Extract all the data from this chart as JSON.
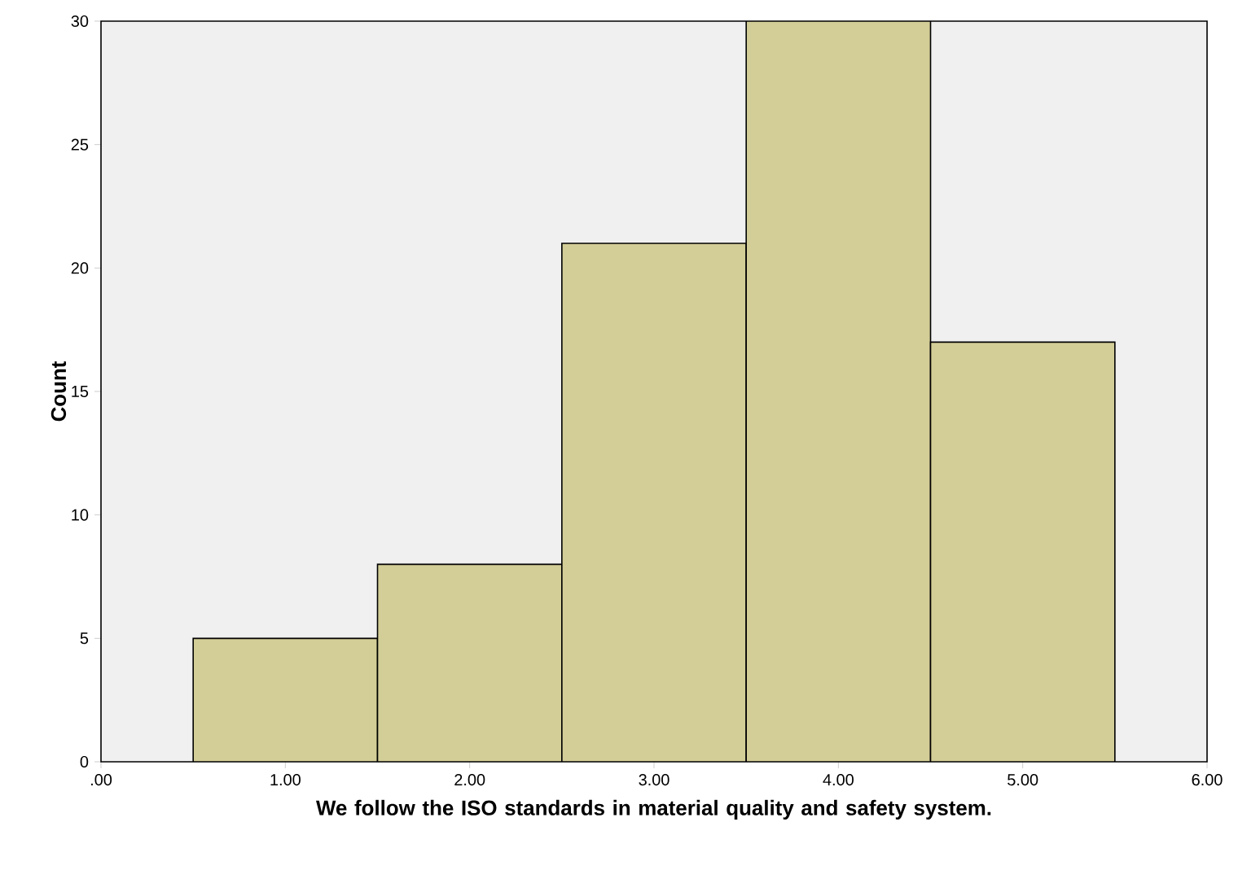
{
  "chart_data": {
    "type": "histogram",
    "xlabel": "We follow the ISO standards in material quality and safety system.",
    "ylabel": "Count",
    "bins": [
      0.5,
      1.5,
      2.5,
      3.5,
      4.5,
      5.5
    ],
    "values": [
      5,
      8,
      21,
      30,
      17
    ],
    "color": "#d3ce97",
    "xlim": [
      0,
      6
    ],
    "xticks": [
      {
        "value": 0,
        "label": ".00"
      },
      {
        "value": 1,
        "label": "1.00"
      },
      {
        "value": 2,
        "label": "2.00"
      },
      {
        "value": 3,
        "label": "3.00"
      },
      {
        "value": 4,
        "label": "4.00"
      },
      {
        "value": 5,
        "label": "5.00"
      },
      {
        "value": 6,
        "label": "6.00"
      }
    ],
    "ylim": [
      0,
      30
    ],
    "yticks": [
      0,
      5,
      10,
      15,
      20,
      25,
      30
    ]
  }
}
